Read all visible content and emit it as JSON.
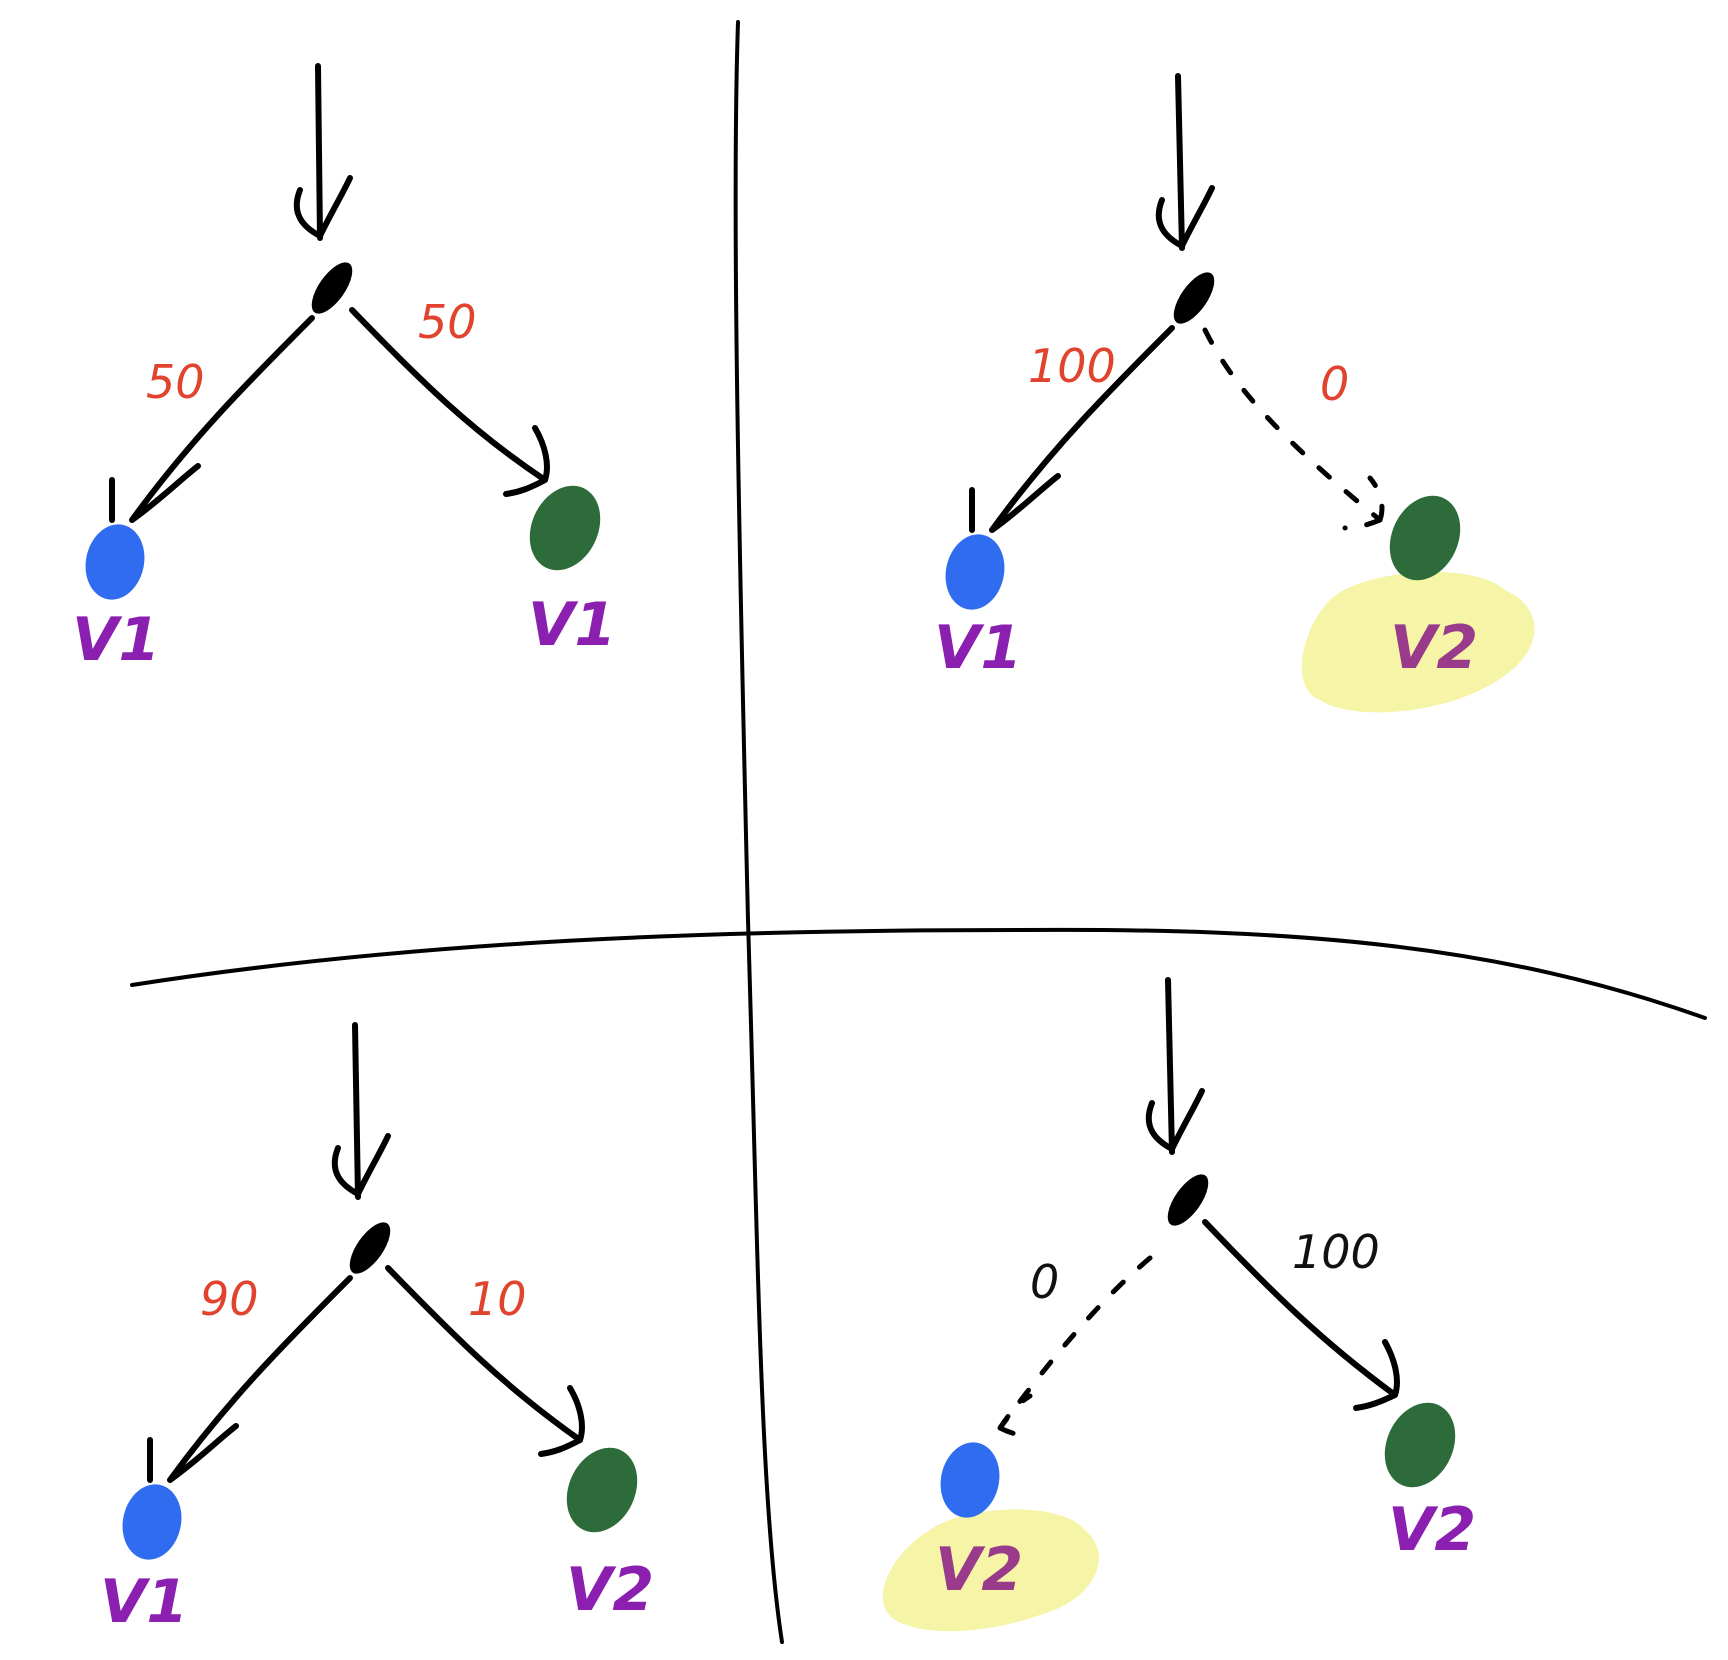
{
  "colors": {
    "ink": "#000000",
    "weight_red": "#e0442f",
    "weight_black": "#111111",
    "label_purple": "#8a1fb0",
    "label_purple_muted": "#9a3a8a",
    "node_blue": "#2f6cf0",
    "node_green": "#2e6b3a",
    "highlight_yellow": "#f6f4a6"
  },
  "panels": [
    {
      "left_weight": "50",
      "right_weight": "50",
      "left_label": "V1",
      "right_label": "V1",
      "left_dashed": false,
      "right_dashed": false,
      "highlight": "none",
      "weight_color": "red"
    },
    {
      "left_weight": "100",
      "right_weight": "0",
      "left_label": "V1",
      "right_label": "V2",
      "left_dashed": false,
      "right_dashed": true,
      "highlight": "right",
      "weight_color": "red"
    },
    {
      "left_weight": "90",
      "right_weight": "10",
      "left_label": "V1",
      "right_label": "V2",
      "left_dashed": false,
      "right_dashed": false,
      "highlight": "none",
      "weight_color": "red"
    },
    {
      "left_weight": "0",
      "right_weight": "100",
      "left_label": "V2",
      "right_label": "V2",
      "left_dashed": true,
      "right_dashed": false,
      "highlight": "left",
      "weight_color": "black"
    }
  ]
}
